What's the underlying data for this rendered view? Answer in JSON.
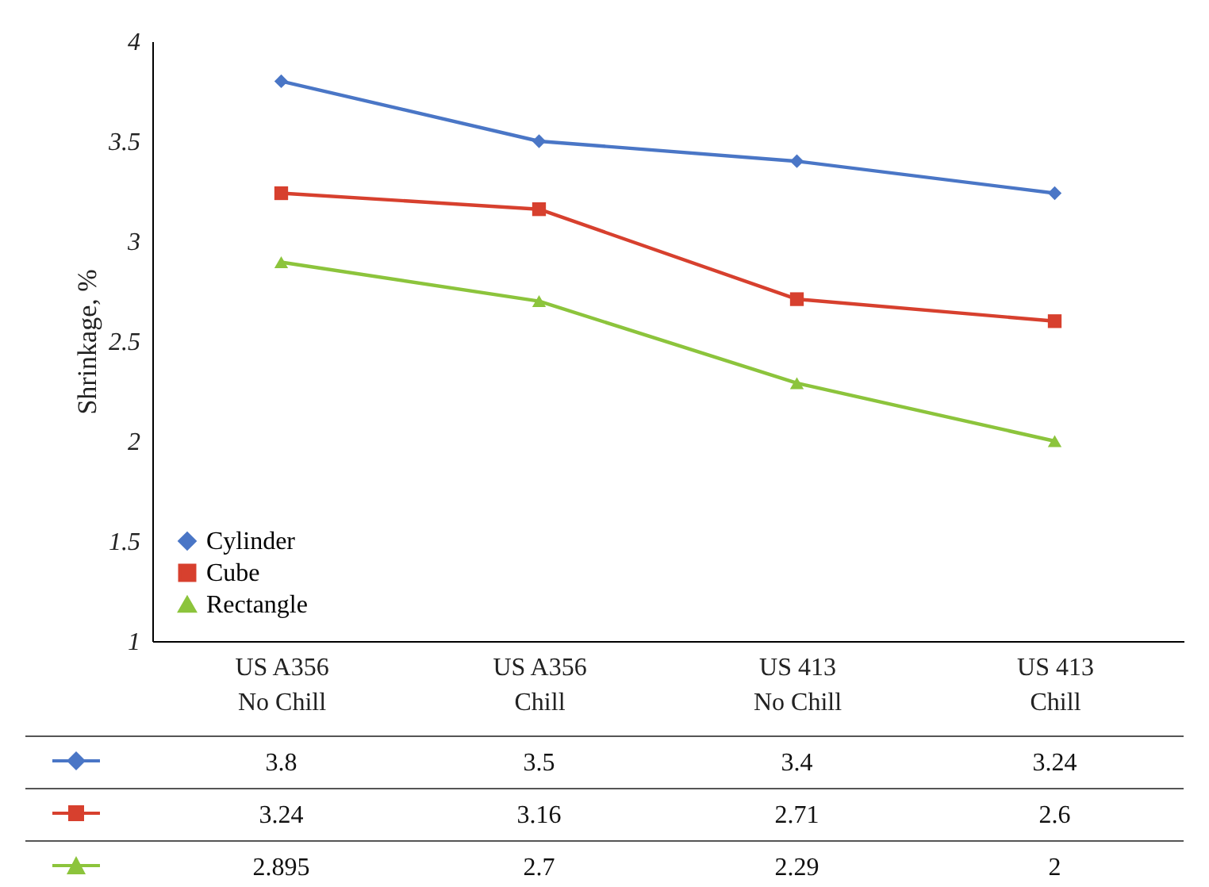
{
  "chart_data": {
    "type": "line",
    "ylabel": "Shrinkage, %",
    "categories": [
      "US A356\nNo Chill",
      "US A356\nChill",
      "US 413\nNo Chill",
      "US 413\nChill"
    ],
    "series": [
      {
        "name": "Cylinder",
        "color": "#4a76c6",
        "marker": "diamond",
        "values": [
          3.8,
          3.5,
          3.4,
          3.24
        ]
      },
      {
        "name": "Cube",
        "color": "#d7402e",
        "marker": "square",
        "values": [
          3.24,
          3.16,
          2.71,
          2.6
        ]
      },
      {
        "name": "Rectangle",
        "color": "#8cc43c",
        "marker": "triangle",
        "values": [
          2.895,
          2.7,
          2.29,
          2
        ]
      }
    ],
    "ylim": [
      1,
      4
    ],
    "yticks": [
      1,
      1.5,
      2,
      2.5,
      3,
      3.5,
      4
    ],
    "grid": false,
    "legend": "bottom left",
    "data_labels": true
  }
}
